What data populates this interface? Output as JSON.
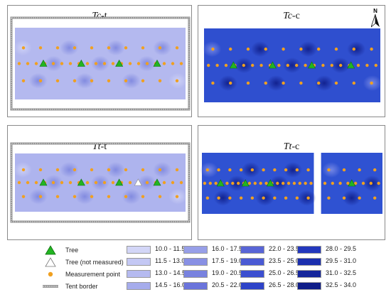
{
  "panels": [
    {
      "id": "tc-t",
      "title_main": "Tc",
      "title_sub": "-t",
      "base": "#b4b9ef",
      "tent": true,
      "trees": [
        1,
        3,
        5,
        7
      ],
      "tree_open": []
    },
    {
      "id": "tc-c",
      "title_main": "Tc",
      "title_sub": "-c",
      "base": "#2f4fcf",
      "tent": false,
      "trees": [
        1,
        3,
        5,
        7
      ],
      "tree_open": []
    },
    {
      "id": "tt-t",
      "title_main": "Tt",
      "title_sub": "-t",
      "base": "#aeb4ee",
      "tent": true,
      "trees": [
        1,
        3,
        5,
        7
      ],
      "tree_open": [
        6
      ]
    },
    {
      "id": "tt-c",
      "title_main": "Tt",
      "title_sub": "-c",
      "base": "#2f52d2",
      "tent": false,
      "trees": [
        1,
        3,
        5
      ],
      "tree_open": []
    }
  ],
  "north_label": "N",
  "legend": {
    "symbols": [
      {
        "key": "tree",
        "label": "Tree",
        "color": "#22b522"
      },
      {
        "key": "tree-not-measured",
        "label": "Tree (not measured)",
        "color": "#ffffff"
      },
      {
        "key": "measurement-point",
        "label": "Measurement point",
        "color": "#f0a020"
      },
      {
        "key": "tent-border",
        "label": "Tent border",
        "color": "#8c8c8c"
      }
    ],
    "classes": [
      {
        "label": "10.0 - 11.5",
        "color": "#d3d6f7"
      },
      {
        "label": "11.5 - 13.0",
        "color": "#c4c8f4"
      },
      {
        "label": "13.0 - 14.5",
        "color": "#b5baf0"
      },
      {
        "label": "14.5 - 16.0",
        "color": "#a6acec"
      },
      {
        "label": "16.0 - 17.5",
        "color": "#979fe8"
      },
      {
        "label": "17.5 - 19.0",
        "color": "#8890e4"
      },
      {
        "label": "19.0 - 20.5",
        "color": "#7882df"
      },
      {
        "label": "20.5 - 22.0",
        "color": "#6a74db"
      },
      {
        "label": "22.0 - 23.5",
        "color": "#5865d6"
      },
      {
        "label": "23.5 - 25.0",
        "color": "#4a5ad4"
      },
      {
        "label": "25.0 - 26.5",
        "color": "#3c4fd0"
      },
      {
        "label": "26.5 - 28.0",
        "color": "#2e43c8"
      },
      {
        "label": "28.0 - 29.5",
        "color": "#2338bd"
      },
      {
        "label": "29.5 - 31.0",
        "color": "#1b2fae"
      },
      {
        "label": "31.0 - 32.5",
        "color": "#15269c"
      },
      {
        "label": "32.5 - 34.0",
        "color": "#0f1d88"
      }
    ]
  }
}
